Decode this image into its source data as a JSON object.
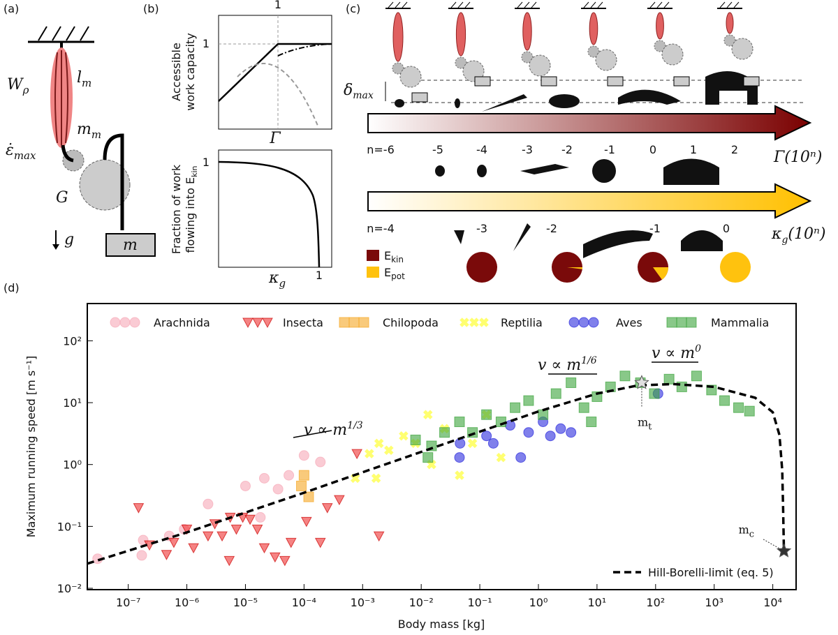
{
  "panel_a": {
    "tag": "(a)",
    "w": {
      "base": "W",
      "sub": "ρ"
    },
    "l": {
      "base": "l",
      "sub": "m"
    },
    "mm": {
      "base": "m",
      "sub": "m"
    },
    "eps": {
      "base": "ε̇",
      "sub": "max"
    },
    "gear": "G",
    "grav": "g",
    "mass": "m"
  },
  "panel_b": {
    "tag": "(b)",
    "top": {
      "one_x": "1",
      "one_y": "1",
      "xlabel": "Γ",
      "ylabel": [
        "Accessible",
        "work capacity"
      ]
    },
    "bottom": {
      "one_x": "1",
      "one_y": "1",
      "xlabel": {
        "base": "κ",
        "sub": "g"
      },
      "ylabel": [
        "Fraction of work",
        "flowing into E",
        "kin"
      ]
    }
  },
  "panel_c": {
    "tag": "(c)",
    "delta": {
      "base": "δ",
      "sub": "max"
    },
    "gamma_arrow": {
      "ticks": [
        "n=-6",
        "-5",
        "-4",
        "-3",
        "-2",
        "-1",
        "0",
        "1",
        "2"
      ],
      "label": "Γ(10ⁿ)",
      "color": "#7a0000"
    },
    "kappa_arrow": {
      "ticks": [
        "n=-4",
        "-3",
        "-2",
        "-1",
        "0"
      ],
      "label": {
        "base": "κ",
        "sub": "g",
        "rest": "(10ⁿ)"
      },
      "color": "#ffc000"
    },
    "legend": [
      {
        "base": "E",
        "sub": "kin",
        "color": "#7a0a0a"
      },
      {
        "base": "E",
        "sub": "pot",
        "color": "#ffc20e"
      }
    ],
    "pies_pot_percent": [
      0,
      2,
      15,
      100
    ]
  },
  "chart_data": {
    "type": "scatter",
    "tag": "(d)",
    "xlabel": "Body mass [kg]",
    "ylabel": "Maximum running speed [m s⁻¹]",
    "log_x": true,
    "log_y": true,
    "xlim": [
      2e-08,
      25000
    ],
    "ylim": [
      0.0095,
      400
    ],
    "xticks": [
      {
        "value": 1e-07,
        "label": "10⁻⁷"
      },
      {
        "value": 1e-06,
        "label": "10⁻⁶"
      },
      {
        "value": 1e-05,
        "label": "10⁻⁵"
      },
      {
        "value": 0.0001,
        "label": "10⁻⁴"
      },
      {
        "value": 0.001,
        "label": "10⁻³"
      },
      {
        "value": 0.01,
        "label": "10⁻²"
      },
      {
        "value": 0.1,
        "label": "10⁻¹"
      },
      {
        "value": 1,
        "label": "10⁰"
      },
      {
        "value": 10,
        "label": "10¹"
      },
      {
        "value": 100,
        "label": "10²"
      },
      {
        "value": 1000,
        "label": "10³"
      },
      {
        "value": 10000,
        "label": "10⁴"
      }
    ],
    "yticks": [
      {
        "value": 0.01,
        "label": "10⁻²"
      },
      {
        "value": 0.1,
        "label": "10⁻¹"
      },
      {
        "value": 1,
        "label": "10⁰"
      },
      {
        "value": 10,
        "label": "10¹"
      },
      {
        "value": 100,
        "label": "10²"
      }
    ],
    "series": [
      {
        "name": "Arachnida",
        "color": "#f7a9b8",
        "marker": "circle",
        "x": [
          3e-08,
          1.7e-07,
          1.8e-07,
          5e-07,
          9e-07,
          2.3e-06,
          1e-05,
          1.8e-05,
          2.1e-05,
          3.6e-05,
          5.5e-05,
          0.0001,
          0.00019
        ],
        "values": [
          0.03,
          0.034,
          0.06,
          0.07,
          0.09,
          0.23,
          0.45,
          0.14,
          0.6,
          0.4,
          0.67,
          1.4,
          1.1
        ]
      },
      {
        "name": "Insecta",
        "color": "#ee3030",
        "marker": "triangle",
        "x": [
          1.5e-07,
          2.3e-07,
          4.5e-07,
          6e-07,
          1e-06,
          1.3e-06,
          2.3e-06,
          3e-06,
          4e-06,
          5.3e-06,
          5.5e-06,
          7e-06,
          9e-06,
          1.2e-05,
          1.6e-05,
          2.1e-05,
          3.2e-05,
          4.7e-05,
          6e-05,
          0.00011,
          0.00019,
          0.00025,
          0.0004,
          0.0008,
          0.0019
        ],
        "values": [
          0.2,
          0.05,
          0.035,
          0.055,
          0.09,
          0.045,
          0.07,
          0.11,
          0.07,
          0.028,
          0.14,
          0.09,
          0.14,
          0.13,
          0.09,
          0.045,
          0.032,
          0.028,
          0.055,
          0.12,
          0.055,
          0.2,
          0.27,
          1.5,
          0.07
        ]
      },
      {
        "name": "Chilopoda",
        "color": "#f5a623",
        "marker": "square",
        "x": [
          9e-05,
          0.0001,
          0.00012
        ],
        "values": [
          0.45,
          0.67,
          0.3
        ]
      },
      {
        "name": "Reptilia",
        "color": "#ffff33",
        "marker": "cross",
        "x": [
          0.00075,
          0.0013,
          0.0017,
          0.0019,
          0.0028,
          0.005,
          0.008,
          0.013,
          0.015,
          0.025,
          0.045,
          0.075,
          0.13,
          0.23
        ],
        "values": [
          0.6,
          1.5,
          0.6,
          2.2,
          1.7,
          2.9,
          2.2,
          6.4,
          1,
          3.8,
          0.67,
          2.2,
          6.4,
          1.3
        ]
      },
      {
        "name": "Aves",
        "color": "#2b2bdd",
        "marker": "circle",
        "x": [
          0.045,
          0.046,
          0.13,
          0.17,
          0.33,
          0.5,
          0.68,
          1.2,
          1.6,
          2.4,
          3.6,
          110
        ],
        "values": [
          1.3,
          2.2,
          2.9,
          2.2,
          4.3,
          1.3,
          3.3,
          4.9,
          2.9,
          3.8,
          3.3,
          14
        ]
      },
      {
        "name": "Mammalia",
        "color": "#3aa33a",
        "marker": "square",
        "x": [
          0.008,
          0.013,
          0.015,
          0.025,
          0.045,
          0.075,
          0.13,
          0.23,
          0.4,
          0.68,
          1.2,
          2,
          3.6,
          6,
          8,
          10,
          17,
          30,
          55,
          95,
          170,
          280,
          500,
          900,
          1500,
          2600,
          4000
        ],
        "values": [
          2.5,
          1.3,
          2,
          3.3,
          4.9,
          3.3,
          6.4,
          4.9,
          8.3,
          10.8,
          6.4,
          14,
          21,
          8.3,
          4.9,
          12.5,
          18,
          27,
          21,
          14,
          24,
          18,
          27,
          16,
          10.8,
          8.3,
          7.3
        ]
      }
    ],
    "lines": [
      {
        "name": "Hill-Borelli-limit (eq. 5)",
        "color": "#000000",
        "x": [
          2e-08,
          1e-06,
          0.0001,
          0.001,
          0.01,
          0.1,
          1,
          10,
          50,
          200,
          1000,
          5000,
          10000,
          13000,
          14500,
          15000,
          15500
        ],
        "values": [
          0.025,
          0.08,
          0.35,
          0.75,
          1.6,
          3.4,
          7.2,
          14,
          19,
          20,
          18,
          12,
          7,
          3,
          0.8,
          0.2,
          0.04
        ]
      }
    ],
    "points": [
      {
        "label": {
          "base": "m",
          "sub": "t"
        },
        "x": 58,
        "y": 21,
        "color": "#e0e0e0"
      },
      {
        "label": {
          "base": "m",
          "sub": "c"
        },
        "x": 15500,
        "y": 0.04,
        "color": "#333333"
      }
    ],
    "slopes": [
      {
        "base": "v ∝ m",
        "sup": "1/3"
      },
      {
        "base": "v ∝ m",
        "sup": "1/6"
      },
      {
        "base": "v ∝ m",
        "sup": "0"
      }
    ]
  }
}
